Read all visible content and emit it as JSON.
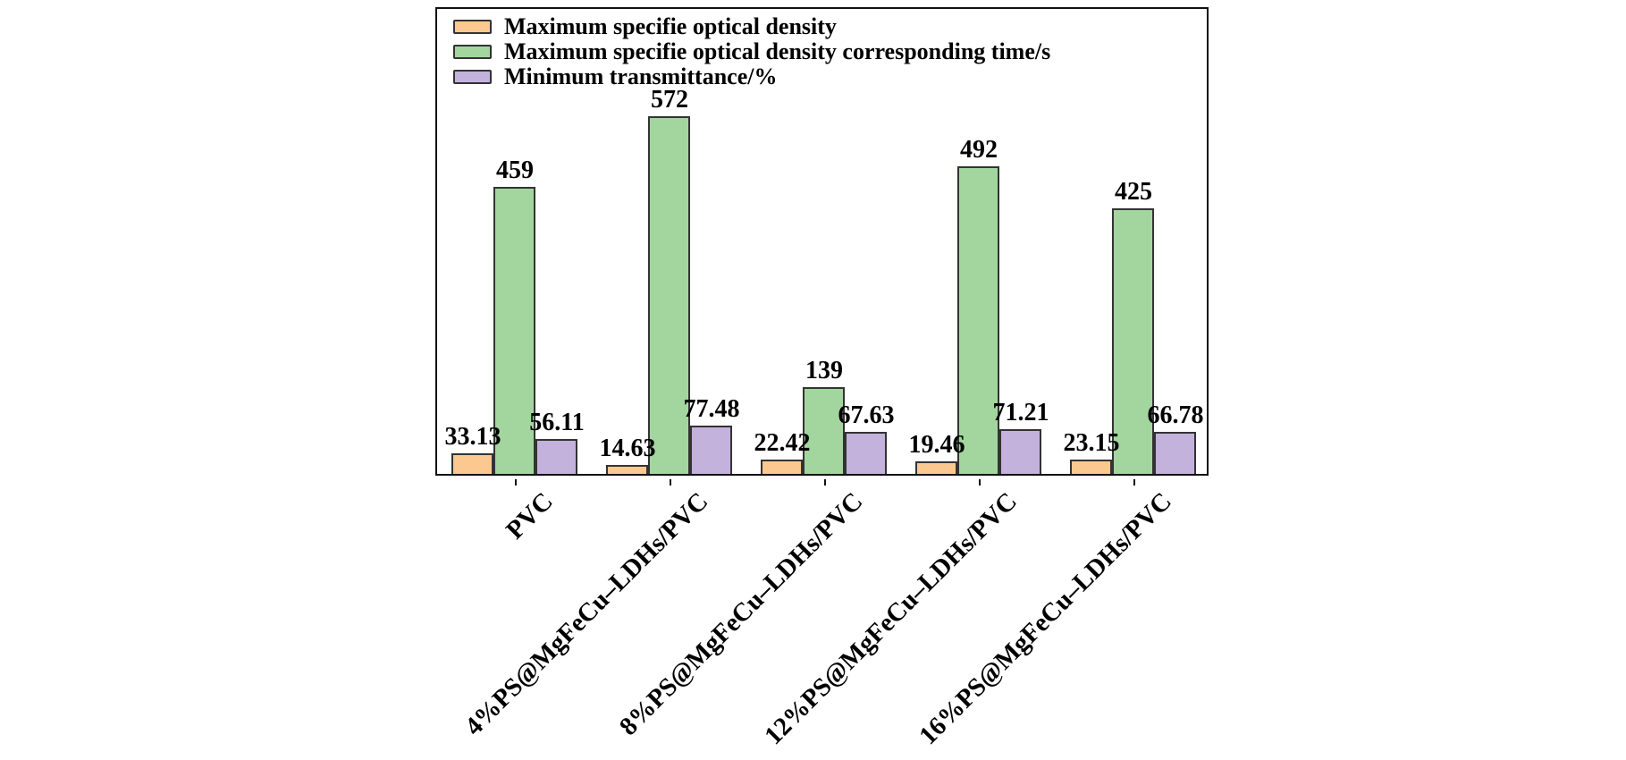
{
  "colors": {
    "orange": "#FBC98F",
    "green": "#A3D69E",
    "purple": "#C2B2DC",
    "bar_border": "#333333",
    "frame": "#111111",
    "text": "#000000",
    "background": "#FFFFFF"
  },
  "legend": {
    "items": [
      {
        "label": "Maximum specifie optical density",
        "color_key": "orange"
      },
      {
        "label": "Maximum specifie optical density corresponding time/s",
        "color_key": "green"
      },
      {
        "label": "Minimum transmittance/%",
        "color_key": "purple"
      }
    ]
  },
  "chart_data": {
    "type": "bar",
    "title": "",
    "xlabel": "",
    "ylabel": "",
    "categories": [
      "PVC",
      "4%PS@MgFeCu–LDHs/PVC",
      "8%PS@MgFeCu–LDHs/PVC",
      "12%PS@MgFeCu–LDHs/PVC",
      "16%PS@MgFeCu–LDHs/PVC"
    ],
    "series": [
      {
        "name": "Maximum specifie optical density",
        "color_key": "orange",
        "values": [
          33.13,
          14.63,
          22.42,
          19.46,
          23.15
        ],
        "labels": [
          "33.13",
          "14.63",
          "22.42",
          "19.46",
          "23.15"
        ]
      },
      {
        "name": "Maximum specifie optical density corresponding time/s",
        "color_key": "green",
        "values": [
          459,
          572,
          139,
          492,
          425
        ],
        "labels": [
          "459",
          "572",
          "139",
          "492",
          "425"
        ]
      },
      {
        "name": "Minimum transmittance/%",
        "color_key": "purple",
        "values": [
          56.11,
          77.48,
          67.63,
          71.21,
          66.78
        ],
        "labels": [
          "56.11",
          "77.48",
          "67.63",
          "71.21",
          "66.78"
        ]
      }
    ],
    "ylim": [
      0,
      749
    ],
    "y_axis_shown": false,
    "grid": false,
    "value_labels_shown": true,
    "legend_position": "upper-left",
    "x_tick_rotation_deg": 45
  }
}
